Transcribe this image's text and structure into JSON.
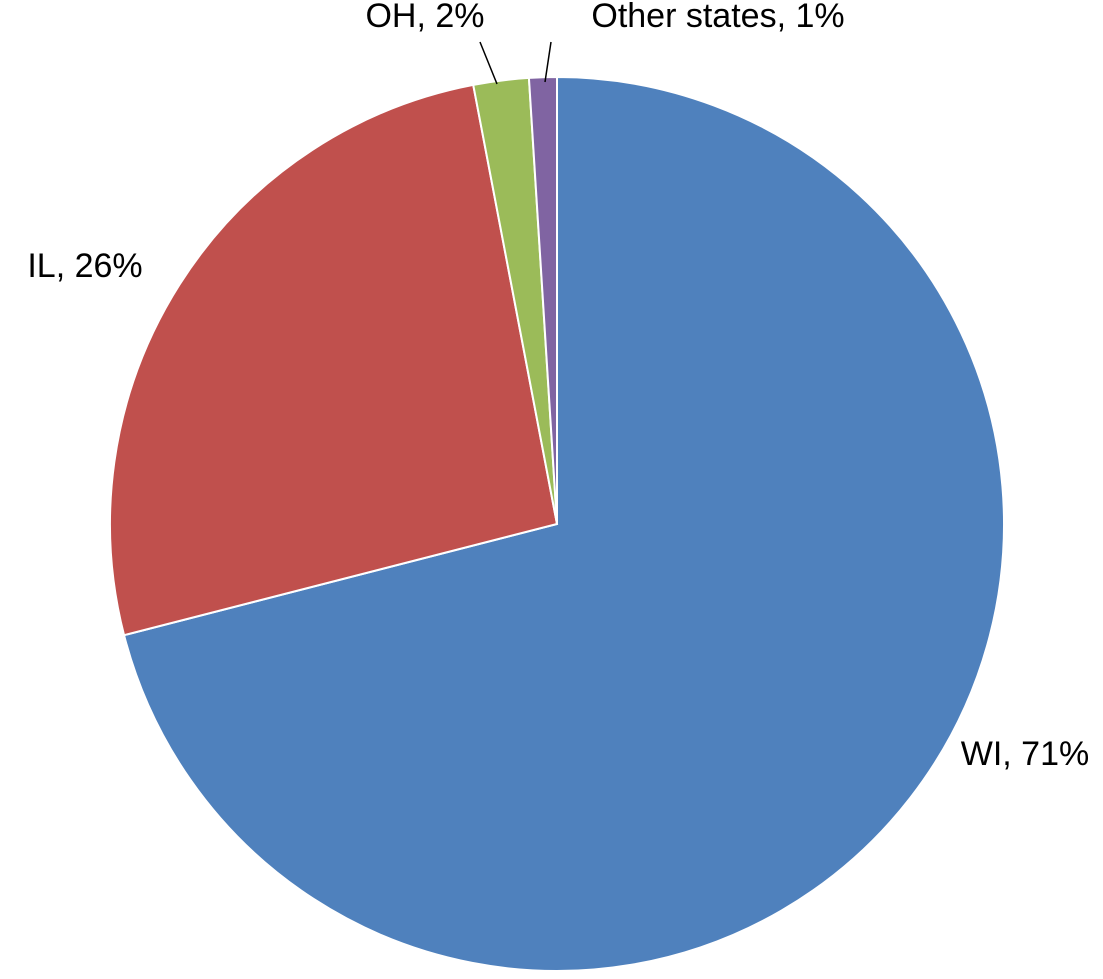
{
  "chart_data": {
    "type": "pie",
    "categories": [
      "WI, 71%",
      "IL, 26%",
      "OH, 2%",
      "Other states, 1%"
    ],
    "values": [
      71,
      26,
      2,
      1
    ],
    "colors": [
      "#4f81bd",
      "#c0504d",
      "#9bbb59",
      "#8064a2"
    ]
  }
}
